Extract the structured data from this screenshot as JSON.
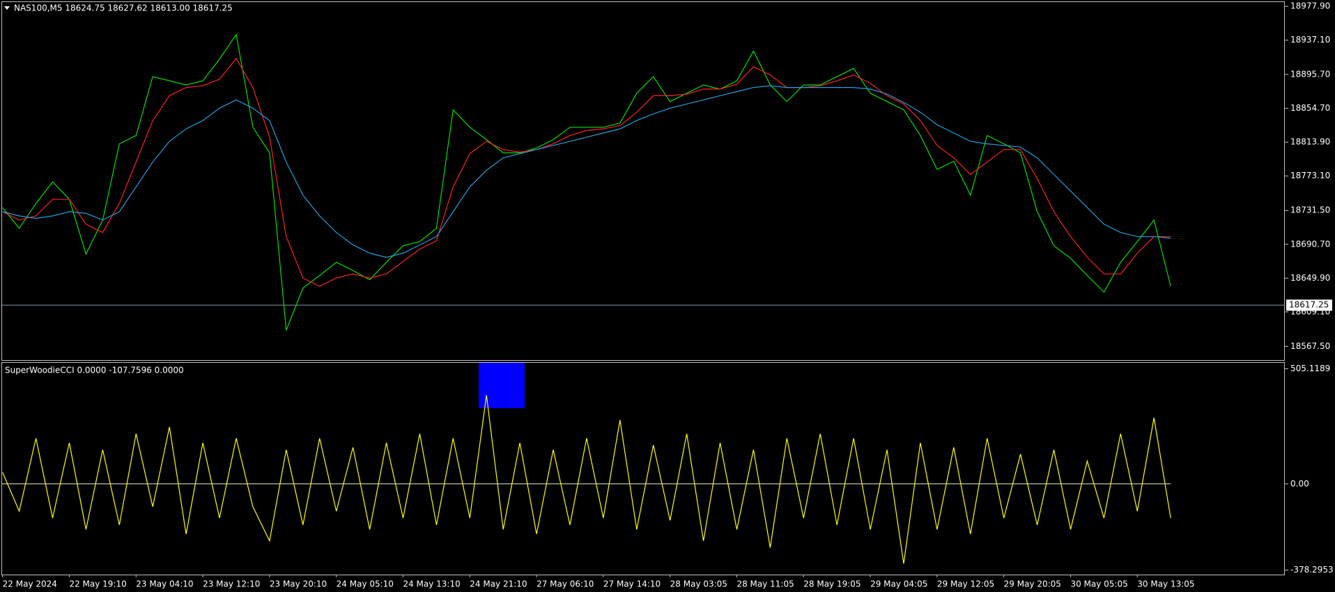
{
  "chart_data": [
    {
      "type": "line",
      "title": "NAS100,M5  18624.75 18627.62 18613.00 18617.25",
      "series": [
        {
          "color": "#00e000",
          "values": [
            18735,
            18710,
            18740,
            18766,
            18745,
            18679,
            18720,
            18812,
            18822,
            18893,
            18888,
            18883,
            18888,
            18914,
            18944,
            18832,
            18801,
            18587,
            18638,
            18653,
            18669,
            18659,
            18648,
            18669,
            18689,
            18694,
            18710,
            18853,
            18832,
            18817,
            18801,
            18801,
            18807,
            18817,
            18832,
            18832,
            18832,
            18837,
            18873,
            18893,
            18863,
            18873,
            18883,
            18878,
            18888,
            18924,
            18883,
            18863,
            18883,
            18883,
            18893,
            18903,
            18873,
            18863,
            18853,
            18822,
            18781,
            18791,
            18750,
            18822,
            18812,
            18801,
            18730,
            18689,
            18674,
            18653,
            18633,
            18669,
            18694,
            18720,
            18640
          ]
        },
        {
          "color": "#ff2020",
          "values": [
            18730,
            18720,
            18725,
            18745,
            18745,
            18715,
            18705,
            18740,
            18790,
            18840,
            18870,
            18880,
            18882,
            18890,
            18915,
            18880,
            18820,
            18700,
            18650,
            18640,
            18650,
            18655,
            18650,
            18655,
            18670,
            18685,
            18695,
            18760,
            18800,
            18815,
            18805,
            18802,
            18805,
            18812,
            18822,
            18828,
            18830,
            18834,
            18850,
            18870,
            18870,
            18872,
            18878,
            18878,
            18884,
            18905,
            18895,
            18880,
            18880,
            18882,
            18888,
            18895,
            18885,
            18870,
            18860,
            18840,
            18810,
            18795,
            18775,
            18790,
            18805,
            18805,
            18770,
            18730,
            18700,
            18675,
            18655,
            18655,
            18680,
            18700,
            18700
          ]
        },
        {
          "color": "#1e9fe0",
          "values": [
            18730,
            18725,
            18722,
            18725,
            18730,
            18728,
            18720,
            18730,
            18760,
            18790,
            18815,
            18830,
            18840,
            18855,
            18865,
            18855,
            18840,
            18790,
            18750,
            18725,
            18705,
            18690,
            18680,
            18675,
            18680,
            18690,
            18700,
            18730,
            18760,
            18780,
            18795,
            18800,
            18805,
            18810,
            18815,
            18820,
            18825,
            18830,
            18840,
            18848,
            18855,
            18860,
            18865,
            18870,
            18875,
            18880,
            18882,
            18880,
            18880,
            18880,
            18880,
            18880,
            18878,
            18872,
            18862,
            18850,
            18835,
            18825,
            18815,
            18812,
            18810,
            18808,
            18795,
            18775,
            18755,
            18735,
            18715,
            18705,
            18700,
            18700,
            18698
          ]
        }
      ],
      "ylim": [
        18551,
        18983
      ],
      "yticks": [
        {
          "value": 18977.9,
          "label": "18977.90"
        },
        {
          "value": 18937.1,
          "label": "18937.10"
        },
        {
          "value": 18895.7,
          "label": "18895.70"
        },
        {
          "value": 18854.7,
          "label": "18854.70"
        },
        {
          "value": 18813.9,
          "label": "18813.90"
        },
        {
          "value": 18773.1,
          "label": "18773.10"
        },
        {
          "value": 18731.5,
          "label": "18731.50"
        },
        {
          "value": 18690.7,
          "label": "18690.70"
        },
        {
          "value": 18649.9,
          "label": "18649.90"
        },
        {
          "value": 18609.1,
          "label": "18609.10"
        },
        {
          "value": 18567.5,
          "label": "18567.50"
        }
      ],
      "current_price": 18617.25,
      "grid": false
    },
    {
      "type": "line",
      "title": "SuperWoodieCCI 0.0000 -107.7596 0.0000",
      "categories": [
        "22 May 2024",
        null,
        null,
        null,
        "22 May 19:10",
        null,
        null,
        null,
        "23 May 04:10",
        null,
        null,
        null,
        "23 May 12:10",
        null,
        null,
        null,
        "23 May 20:10",
        null,
        null,
        null,
        "24 May 05:10",
        null,
        null,
        null,
        "24 May 13:10",
        null,
        null,
        null,
        "24 May 21:10",
        null,
        null,
        null,
        "27 May 06:10",
        null,
        null,
        null,
        "27 May 14:10",
        null,
        null,
        null,
        "28 May 03:05",
        null,
        null,
        null,
        "28 May 11:05",
        null,
        null,
        null,
        "28 May 19:05",
        null,
        null,
        null,
        "29 May 04:05",
        null,
        null,
        null,
        "29 May 12:05",
        null,
        null,
        null,
        "29 May 20:05",
        null,
        null,
        null,
        "30 May 05:05",
        null,
        null,
        null,
        "30 May 13:05",
        null,
        null
      ],
      "series": [
        {
          "color": "#ffff00",
          "values": [
            50,
            -120,
            200,
            -150,
            180,
            -200,
            150,
            -180,
            220,
            -100,
            250,
            -220,
            180,
            -150,
            200,
            -100,
            -250,
            150,
            -180,
            200,
            -120,
            160,
            -200,
            180,
            -150,
            220,
            -180,
            200,
            -150,
            389,
            -200,
            180,
            -220,
            150,
            -180,
            200,
            -150,
            280,
            -200,
            170,
            -160,
            220,
            -250,
            180,
            -200,
            150,
            -280,
            200,
            -150,
            220,
            -180,
            200,
            -200,
            150,
            -350,
            180,
            -200,
            160,
            -220,
            200,
            -150,
            130,
            -180,
            150,
            -200,
            100,
            -150,
            220,
            -120,
            290,
            -150
          ]
        }
      ],
      "ylim": [
        -398,
        531
      ],
      "yticks": [
        505.1189,
        {
          "value": 0,
          "label": "0.00"
        },
        -378.2953
      ],
      "zero_line": true,
      "grid": false
    }
  ]
}
